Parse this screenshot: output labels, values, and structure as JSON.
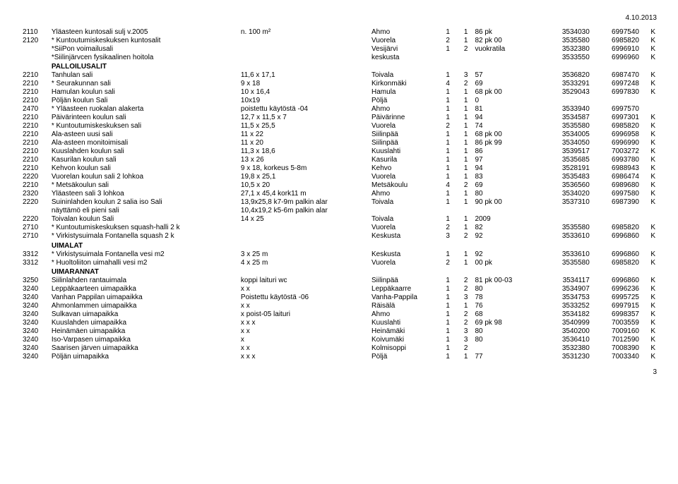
{
  "date": "4.10.2013",
  "pagenum": "3",
  "rows": [
    {
      "c0": "2110",
      "c1": "Yläasteen kuntosali sulj v.2005",
      "c2": "n. 100 m²",
      "c3": "Ahmo",
      "c4": "1",
      "c5": "1",
      "c6": "86 pk",
      "c7": "3534030",
      "c8": "6997540",
      "c9": "K"
    },
    {
      "c0": "2120",
      "c1": "* Kuntoutumiskeskuksen kuntosalit",
      "c2": "",
      "c3": "Vuorela",
      "c4": "2",
      "c5": "1",
      "c6": "82 pk 00",
      "c7": "3535580",
      "c8": "6985820",
      "c9": "K"
    },
    {
      "c0": "",
      "c1": "*SiiPon voimailusali",
      "c2": "",
      "c3": "Vesijärvi",
      "c4": "1",
      "c5": "2",
      "c6": "vuokratila",
      "c7": "3532380",
      "c8": "6996910",
      "c9": "K"
    },
    {
      "c0": "",
      "c1": "*Siilinjärvcen fysikaalinen hoitola",
      "c2": "",
      "c3": "keskusta",
      "c4": "",
      "c5": "",
      "c6": "",
      "c7": "3533550",
      "c8": "6996960",
      "c9": "K"
    },
    {
      "section": "PALLOILUSALIT"
    },
    {
      "c0": "2210",
      "c1": "Tanhulan sali",
      "c2": "11,6 x 17,1",
      "c3": "Toivala",
      "c4": "1",
      "c5": "3",
      "c6": "57",
      "c7": "3536820",
      "c8": "6987470",
      "c9": "K"
    },
    {
      "c0": "2210",
      "c1": "* Seurakunnan sali",
      "c2": "9 x 18",
      "c3": "Kirkonmäki",
      "c4": "4",
      "c5": "2",
      "c6": "69",
      "c7": "3533291",
      "c8": "6997248",
      "c9": "K"
    },
    {
      "c0": "2210",
      "c1": "Hamulan koulun sali",
      "c2": "10 x 16,4",
      "c3": "Hamula",
      "c4": "1",
      "c5": "1",
      "c6": "68 pk 00",
      "c7": "3529043",
      "c8": "6997830",
      "c9": "K"
    },
    {
      "c0": "2210",
      "c1": "Pöljän koulun Sali",
      "c2": "10x19",
      "c3": "Pöljä",
      "c4": "1",
      "c5": "1",
      "c6": "0",
      "c7": "",
      "c8": "",
      "c9": ""
    },
    {
      "c0": "2470",
      "c1": "* Yläasteen ruokalan alakerta",
      "c2": "poistettu käytöstä -04",
      "c3": "Ahmo",
      "c4": "1",
      "c5": "1",
      "c6": "81",
      "c7": "3533940",
      "c8": "6997570",
      "c9": ""
    },
    {
      "c0": "2210",
      "c1": "Päivärinteen koulun sali",
      "c2": "12,7 x 11,5 x 7",
      "c3": "Päivärinne",
      "c4": "1",
      "c5": "1",
      "c6": "94",
      "c7": "3534587",
      "c8": "6997301",
      "c9": "K"
    },
    {
      "c0": "2210",
      "c1": "* Kuntoutumiskeskuksen sali",
      "c2": "11,5 x 25,5",
      "c3": "Vuorela",
      "c4": "2",
      "c5": "1",
      "c6": "74",
      "c7": "3535580",
      "c8": "6985820",
      "c9": "K"
    },
    {
      "c0": "2210",
      "c1": "Ala-asteen uusi sali",
      "c2": "11 x 22",
      "c3": "Siilinpää",
      "c4": "1",
      "c5": "1",
      "c6": "68 pk 00",
      "c7": "3534005",
      "c8": "6996958",
      "c9": "K"
    },
    {
      "c0": "2210",
      "c1": "Ala-asteen monitoimisali",
      "c2": "11 x 20",
      "c3": "Siilinpää",
      "c4": "1",
      "c5": "1",
      "c6": "86 pk 99",
      "c7": "3534050",
      "c8": "6996990",
      "c9": "K"
    },
    {
      "c0": "2210",
      "c1": "Kuuslahden koulun sali",
      "c2": "11,3 x 18,6",
      "c3": "Kuuslahti",
      "c4": "1",
      "c5": "1",
      "c6": "86",
      "c7": "3539517",
      "c8": "7003272",
      "c9": "K"
    },
    {
      "c0": "2210",
      "c1": "Kasurilan koulun sali",
      "c2": "13 x 26",
      "c3": "Kasurila",
      "c4": "1",
      "c5": "1",
      "c6": "97",
      "c7": "3535685",
      "c8": "6993780",
      "c9": "K"
    },
    {
      "c0": "2210",
      "c1": "Kehvon koulun sali",
      "c2": "9 x 18, korkeus 5-8m",
      "c3": "Kehvo",
      "c4": "1",
      "c5": "1",
      "c6": "94",
      "c7": "3528191",
      "c8": "6988943",
      "c9": "K"
    },
    {
      "c0": "2220",
      "c1": "Vuorelan koulun sali 2 lohkoa",
      "c2": "19,8 x 25,1",
      "c3": "Vuorela",
      "c4": "1",
      "c5": "1",
      "c6": "83",
      "c7": "3535483",
      "c8": "6986474",
      "c9": "K"
    },
    {
      "c0": "2210",
      "c1": "* Metsäkoulun sali",
      "c2": "10,5 x 20",
      "c3": "Metsäkoulu",
      "c4": "4",
      "c5": "2",
      "c6": "69",
      "c7": "3536560",
      "c8": "6989680",
      "c9": "K"
    },
    {
      "c0": "2320",
      "c1": "Yläasteen sali 3 lohkoa",
      "c2": "27,1 x 45,4 kork11 m",
      "c3": "Ahmo",
      "c4": "1",
      "c5": "1",
      "c6": "80",
      "c7": "3534020",
      "c8": "6997580",
      "c9": "K"
    },
    {
      "c0": "2220",
      "c1": "Suininlahden koulun 2 salia   iso Sali",
      "c2": "13,9x25,8 k7-9m palkin alar",
      "c3": "Toivala",
      "c4": "1",
      "c5": "1",
      "c6": "90 pk 00",
      "c7": "3537310",
      "c8": "6987390",
      "c9": "K"
    },
    {
      "c0": "",
      "c1": "näyttämö eli pieni sali",
      "c2": "10,4x19,2 k5-6m palkin alar",
      "c3": "",
      "c4": "",
      "c5": "",
      "c6": "",
      "c7": "",
      "c8": "",
      "c9": ""
    },
    {
      "c0": "2220",
      "c1": "Toivalan koulun Sali",
      "c2": "14 x 25",
      "c3": "Toivala",
      "c4": "1",
      "c5": "1",
      "c6": "2009",
      "c7": "",
      "c8": "",
      "c9": ""
    },
    {
      "c0": "2710",
      "c1": "* Kuntoutumiskeskuksen squash-halli 2 k",
      "c2": "",
      "c3": "Vuorela",
      "c4": "2",
      "c5": "1",
      "c6": "82",
      "c7": "3535580",
      "c8": "6985820",
      "c9": "K"
    },
    {
      "c0": "2710",
      "c1": "* Virkistysuimala Fontanella squash 2 k",
      "c2": "",
      "c3": "Keskusta",
      "c4": "3",
      "c5": "2",
      "c6": "92",
      "c7": "3533610",
      "c8": "6996860",
      "c9": "K"
    },
    {
      "section": "UIMALAT"
    },
    {
      "c0": "3312",
      "c1": "* Virkistysuimala Fontanella vesi m2",
      "c2": "3 x 25 m",
      "c3": "Keskusta",
      "c4": "1",
      "c5": "1",
      "c6": "92",
      "c7": "3533610",
      "c8": "6996860",
      "c9": "K"
    },
    {
      "c0": "3312",
      "c1": "* Huoltoliiton uimahalli vesi m2",
      "c2": "4 x 25 m",
      "c3": "Vuorela",
      "c4": "2",
      "c5": "1",
      "c6": "00 pk",
      "c7": "3535580",
      "c8": "6985820",
      "c9": "K"
    },
    {
      "section": "UIMARANNAT"
    },
    {
      "c0": "3250",
      "c1": "Siilinlahden rantauimala",
      "c2": "koppi    laituri    wc",
      "c3": "Siilinpää",
      "c4": "1",
      "c5": "2",
      "c6": "81 pk 00-03",
      "c7": "3534117",
      "c8": "6996860",
      "c9": "K"
    },
    {
      "c0": "3240",
      "c1": "Leppäkaarteen uimapaikka",
      "c2": "x           x",
      "c3": "Leppäkaarre",
      "c4": "1",
      "c5": "2",
      "c6": "80",
      "c7": "3534907",
      "c8": "6996236",
      "c9": "K"
    },
    {
      "c0": "3240",
      "c1": "Vanhan Pappilan uimapaikka",
      "c2": "Poistettu käytöstä -06",
      "c3": "Vanha-Pappila",
      "c4": "1",
      "c5": "3",
      "c6": "78",
      "c7": "3534753",
      "c8": "6995725",
      "c9": "K"
    },
    {
      "c0": "3240",
      "c1": "Ahmonlammen uimapaikka",
      "c2": "x           x",
      "c3": "Räisälä",
      "c4": "1",
      "c5": "1",
      "c6": "76",
      "c7": "3533252",
      "c8": "6997915",
      "c9": "K"
    },
    {
      "c0": "3240",
      "c1": "Sulkavan uimapaikka",
      "c2": "x        poist-05 laituri",
      "c3": "Ahmo",
      "c4": "1",
      "c5": "2",
      "c6": "68",
      "c7": "3534182",
      "c8": "6998357",
      "c9": "K"
    },
    {
      "c0": "3240",
      "c1": "Kuuslahden uimapaikka",
      "c2": "x           x          x",
      "c3": "Kuuslahti",
      "c4": "1",
      "c5": "2",
      "c6": "69 pk 98",
      "c7": "3540999",
      "c8": "7003559",
      "c9": "K"
    },
    {
      "c0": "3240",
      "c1": "Heinämäen uimapaikka",
      "c2": "x           x",
      "c3": "Heinämäki",
      "c4": "1",
      "c5": "3",
      "c6": "80",
      "c7": "3540200",
      "c8": "7009160",
      "c9": "K"
    },
    {
      "c0": "3240",
      "c1": "Iso-Varpasen uimapaikka",
      "c2": "x",
      "c3": "Koivumäki",
      "c4": "1",
      "c5": "3",
      "c6": "80",
      "c7": "3536410",
      "c8": "7012590",
      "c9": "K"
    },
    {
      "c0": "3240",
      "c1": "Saarisen järven uimapaikka",
      "c2": "x           x",
      "c3": "Kolmisoppi",
      "c4": "1",
      "c5": "2",
      "c6": "",
      "c7": "3532380",
      "c8": "7008390",
      "c9": "K"
    },
    {
      "c0": "3240",
      "c1": "Pöljän uimapaikka",
      "c2": "x           x          x",
      "c3": "Pöljä",
      "c4": "1",
      "c5": "1",
      "c6": "77",
      "c7": "3531230",
      "c8": "7003340",
      "c9": "K"
    }
  ]
}
